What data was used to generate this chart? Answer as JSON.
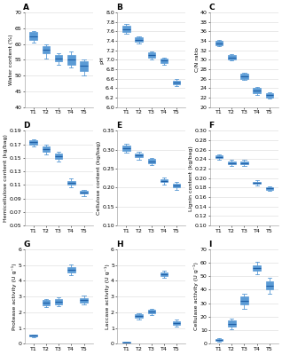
{
  "panels": [
    {
      "label": "A",
      "ylabel": "Water content (%)",
      "ylim": [
        40,
        70
      ],
      "yticks": [
        40,
        45,
        50,
        55,
        60,
        65,
        70
      ],
      "boxes": [
        {
          "med": 62.5,
          "q1": 61.2,
          "q3": 63.8,
          "whislo": 60.5,
          "whishi": 64.2
        },
        {
          "med": 58.2,
          "q1": 57.0,
          "q3": 59.2,
          "whislo": 55.5,
          "whishi": 59.8
        },
        {
          "med": 55.5,
          "q1": 54.5,
          "q3": 56.5,
          "whislo": 53.5,
          "whishi": 57.2
        },
        {
          "med": 55.0,
          "q1": 53.5,
          "q3": 56.5,
          "whislo": 52.5,
          "whishi": 57.5
        },
        {
          "med": 53.0,
          "q1": 51.5,
          "q3": 54.5,
          "whislo": 50.0,
          "whishi": 55.2
        }
      ]
    },
    {
      "label": "B",
      "ylabel": "pH",
      "ylim": [
        6.0,
        8.0
      ],
      "yticks": [
        6.0,
        6.2,
        6.4,
        6.6,
        6.8,
        7.0,
        7.2,
        7.4,
        7.6,
        7.8,
        8.0
      ],
      "boxes": [
        {
          "med": 7.65,
          "q1": 7.58,
          "q3": 7.72,
          "whislo": 7.55,
          "whishi": 7.75
        },
        {
          "med": 7.42,
          "q1": 7.38,
          "q3": 7.47,
          "whislo": 7.35,
          "whishi": 7.5
        },
        {
          "med": 7.1,
          "q1": 7.05,
          "q3": 7.15,
          "whislo": 7.0,
          "whishi": 7.18
        },
        {
          "med": 6.98,
          "q1": 6.94,
          "q3": 7.02,
          "whislo": 6.9,
          "whishi": 7.05
        },
        {
          "med": 6.52,
          "q1": 6.48,
          "q3": 6.56,
          "whislo": 6.45,
          "whishi": 6.59
        }
      ]
    },
    {
      "label": "C",
      "ylabel": "C/N ratio",
      "ylim": [
        20,
        40
      ],
      "yticks": [
        20,
        22,
        24,
        26,
        28,
        30,
        32,
        34,
        36,
        38,
        40
      ],
      "boxes": [
        {
          "med": 33.5,
          "q1": 33.0,
          "q3": 34.0,
          "whislo": 32.8,
          "whishi": 34.2
        },
        {
          "med": 30.5,
          "q1": 30.0,
          "q3": 31.0,
          "whislo": 29.8,
          "whishi": 31.2
        },
        {
          "med": 26.5,
          "q1": 26.0,
          "q3": 27.0,
          "whislo": 25.8,
          "whishi": 27.2
        },
        {
          "med": 23.5,
          "q1": 23.0,
          "q3": 24.0,
          "whislo": 22.5,
          "whishi": 24.2
        },
        {
          "med": 22.5,
          "q1": 22.0,
          "q3": 23.0,
          "whislo": 21.8,
          "whishi": 23.2
        }
      ]
    },
    {
      "label": "D",
      "ylabel": "Hemicellulose content (kg/bag)",
      "ylim": [
        0.05,
        0.19
      ],
      "yticks": [
        0.05,
        0.07,
        0.09,
        0.11,
        0.13,
        0.15,
        0.17,
        0.19
      ],
      "boxes": [
        {
          "med": 0.173,
          "q1": 0.17,
          "q3": 0.176,
          "whislo": 0.167,
          "whishi": 0.178
        },
        {
          "med": 0.163,
          "q1": 0.159,
          "q3": 0.167,
          "whislo": 0.155,
          "whishi": 0.17
        },
        {
          "med": 0.152,
          "q1": 0.149,
          "q3": 0.156,
          "whislo": 0.145,
          "whishi": 0.159
        },
        {
          "med": 0.113,
          "q1": 0.11,
          "q3": 0.116,
          "whislo": 0.107,
          "whishi": 0.119
        },
        {
          "med": 0.099,
          "q1": 0.097,
          "q3": 0.101,
          "whislo": 0.094,
          "whishi": 0.103
        }
      ]
    },
    {
      "label": "E",
      "ylabel": "Cellulose content (kg/bag)",
      "ylim": [
        0.1,
        0.35
      ],
      "yticks": [
        0.1,
        0.15,
        0.2,
        0.25,
        0.3,
        0.35
      ],
      "boxes": [
        {
          "med": 0.305,
          "q1": 0.298,
          "q3": 0.312,
          "whislo": 0.292,
          "whishi": 0.316
        },
        {
          "med": 0.285,
          "q1": 0.28,
          "q3": 0.29,
          "whislo": 0.274,
          "whishi": 0.294
        },
        {
          "med": 0.27,
          "q1": 0.265,
          "q3": 0.275,
          "whislo": 0.259,
          "whishi": 0.279
        },
        {
          "med": 0.218,
          "q1": 0.214,
          "q3": 0.222,
          "whislo": 0.208,
          "whishi": 0.226
        },
        {
          "med": 0.205,
          "q1": 0.2,
          "q3": 0.21,
          "whislo": 0.194,
          "whishi": 0.214
        }
      ]
    },
    {
      "label": "F",
      "ylabel": "Lignin content (kg/bag)",
      "ylim": [
        0.1,
        0.3
      ],
      "yticks": [
        0.1,
        0.12,
        0.14,
        0.16,
        0.18,
        0.2,
        0.22,
        0.24,
        0.26,
        0.28,
        0.3
      ],
      "boxes": [
        {
          "med": 0.245,
          "q1": 0.242,
          "q3": 0.248,
          "whislo": 0.239,
          "whishi": 0.251
        },
        {
          "med": 0.232,
          "q1": 0.229,
          "q3": 0.235,
          "whislo": 0.226,
          "whishi": 0.238
        },
        {
          "med": 0.232,
          "q1": 0.229,
          "q3": 0.235,
          "whislo": 0.226,
          "whishi": 0.238
        },
        {
          "med": 0.19,
          "q1": 0.188,
          "q3": 0.192,
          "whislo": 0.185,
          "whishi": 0.195
        },
        {
          "med": 0.178,
          "q1": 0.176,
          "q3": 0.18,
          "whislo": 0.173,
          "whishi": 0.183
        }
      ]
    },
    {
      "label": "G",
      "ylabel": "Protease activity (U g⁻¹)",
      "ylim": [
        0,
        6
      ],
      "yticks": [
        0,
        1,
        2,
        3,
        4,
        5,
        6
      ],
      "boxes": [
        {
          "med": 0.52,
          "q1": 0.48,
          "q3": 0.57,
          "whislo": 0.44,
          "whishi": 0.6
        },
        {
          "med": 2.6,
          "q1": 2.45,
          "q3": 2.75,
          "whislo": 2.35,
          "whishi": 2.85
        },
        {
          "med": 2.68,
          "q1": 2.52,
          "q3": 2.82,
          "whislo": 2.4,
          "whishi": 2.92
        },
        {
          "med": 4.7,
          "q1": 4.55,
          "q3": 4.85,
          "whislo": 4.35,
          "whishi": 5.02
        },
        {
          "med": 2.75,
          "q1": 2.62,
          "q3": 2.88,
          "whislo": 2.48,
          "whishi": 3.05
        }
      ]
    },
    {
      "label": "H",
      "ylabel": "Laccase activity (U g⁻¹)",
      "ylim": [
        0,
        6
      ],
      "yticks": [
        0,
        1,
        2,
        3,
        4,
        5,
        6
      ],
      "boxes": [
        {
          "med": 0.1,
          "q1": 0.08,
          "q3": 0.12,
          "whislo": 0.06,
          "whishi": 0.13
        },
        {
          "med": 1.78,
          "q1": 1.68,
          "q3": 1.88,
          "whislo": 1.56,
          "whishi": 1.96
        },
        {
          "med": 2.05,
          "q1": 1.95,
          "q3": 2.15,
          "whislo": 1.82,
          "whishi": 2.24
        },
        {
          "med": 4.42,
          "q1": 4.32,
          "q3": 4.52,
          "whislo": 4.2,
          "whishi": 4.62
        },
        {
          "med": 1.32,
          "q1": 1.22,
          "q3": 1.42,
          "whislo": 1.1,
          "whishi": 1.52
        }
      ]
    },
    {
      "label": "I",
      "ylabel": "Cellulase activity (U g⁻¹)",
      "ylim": [
        0,
        70
      ],
      "yticks": [
        0,
        10,
        20,
        30,
        40,
        50,
        60,
        70
      ],
      "boxes": [
        {
          "med": 3.0,
          "q1": 2.5,
          "q3": 3.5,
          "whislo": 1.8,
          "whishi": 4.2
        },
        {
          "med": 15.0,
          "q1": 13.0,
          "q3": 17.0,
          "whislo": 11.0,
          "whishi": 18.5
        },
        {
          "med": 32.0,
          "q1": 29.0,
          "q3": 35.0,
          "whislo": 26.0,
          "whishi": 37.0
        },
        {
          "med": 56.0,
          "q1": 54.0,
          "q3": 58.0,
          "whislo": 51.5,
          "whishi": 60.5
        },
        {
          "med": 43.0,
          "q1": 40.0,
          "q3": 46.0,
          "whislo": 37.0,
          "whishi": 49.0
        }
      ]
    }
  ],
  "xticklabels": [
    "T1",
    "T2",
    "T3",
    "T4",
    "T5"
  ],
  "box_facecolor": "#5B9BD5",
  "box_edgecolor": "#5B9BD5",
  "median_color": "#1F5FA6",
  "whisker_color": "#5B9BD5",
  "cap_color": "#5B9BD5",
  "background_color": "#FFFFFF",
  "grid_color": "#D8D8D8",
  "tick_fontsize": 4.5,
  "label_fontsize": 4.5,
  "panel_label_fontsize": 6.5,
  "spine_color": "#AAAAAA"
}
